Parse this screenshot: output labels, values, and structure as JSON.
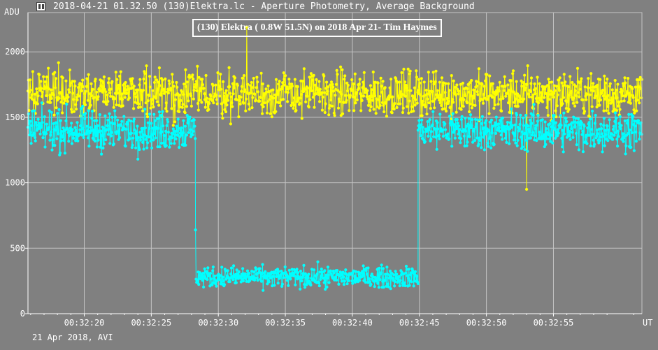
{
  "window": {
    "title": "2018-04-21 01.32.50 (130)Elektra.lc - Aperture Photometry, Average Background"
  },
  "footer": {
    "text": "21 Apr 2018, AVI"
  },
  "chart_data": {
    "type": "line",
    "title": "(130) Elektra  ( 0.8W 51.5N)  on 2018 Apr 21- Tim Haymes",
    "xlabel": "UT",
    "ylabel": "ADU",
    "xlim": [
      "00:32:15.8",
      "00:33:01.6"
    ],
    "ylim": [
      0,
      2300
    ],
    "grid": true,
    "x_ticks": [
      "00:32:20",
      "00:32:25",
      "00:32:30",
      "00:32:35",
      "00:32:40",
      "00:32:45",
      "00:32:50",
      "00:32:55"
    ],
    "y_ticks": [
      0,
      500,
      1000,
      1500,
      2000
    ],
    "sample_interval_s": 0.04,
    "colors": {
      "background": "#808080",
      "grid": "#c4c4c4",
      "axes": "#ffffff",
      "comparison": "#ffff00",
      "target": "#00ffff"
    },
    "series": [
      {
        "color": "#ffff00",
        "segments": [
          {
            "from": "00:32:15.8",
            "to": "00:33:01.6",
            "mean": 1680,
            "amplitude": 150
          }
        ],
        "spikes": [
          {
            "t": "00:32:32.1",
            "y": 2190
          },
          {
            "t": "00:32:53.0",
            "y": 950
          }
        ]
      },
      {
        "color": "#00ffff",
        "segments": [
          {
            "from": "00:32:15.8",
            "to": "00:32:28.3",
            "mean": 1400,
            "amplitude": 130
          },
          {
            "from": "00:32:28.3",
            "to": "00:32:44.9",
            "mean": 280,
            "amplitude": 70
          },
          {
            "from": "00:32:44.9",
            "to": "00:33:01.6",
            "mean": 1400,
            "amplitude": 130
          }
        ],
        "spikes": [
          {
            "t": "00:32:28.3",
            "y": 640
          }
        ]
      }
    ]
  }
}
